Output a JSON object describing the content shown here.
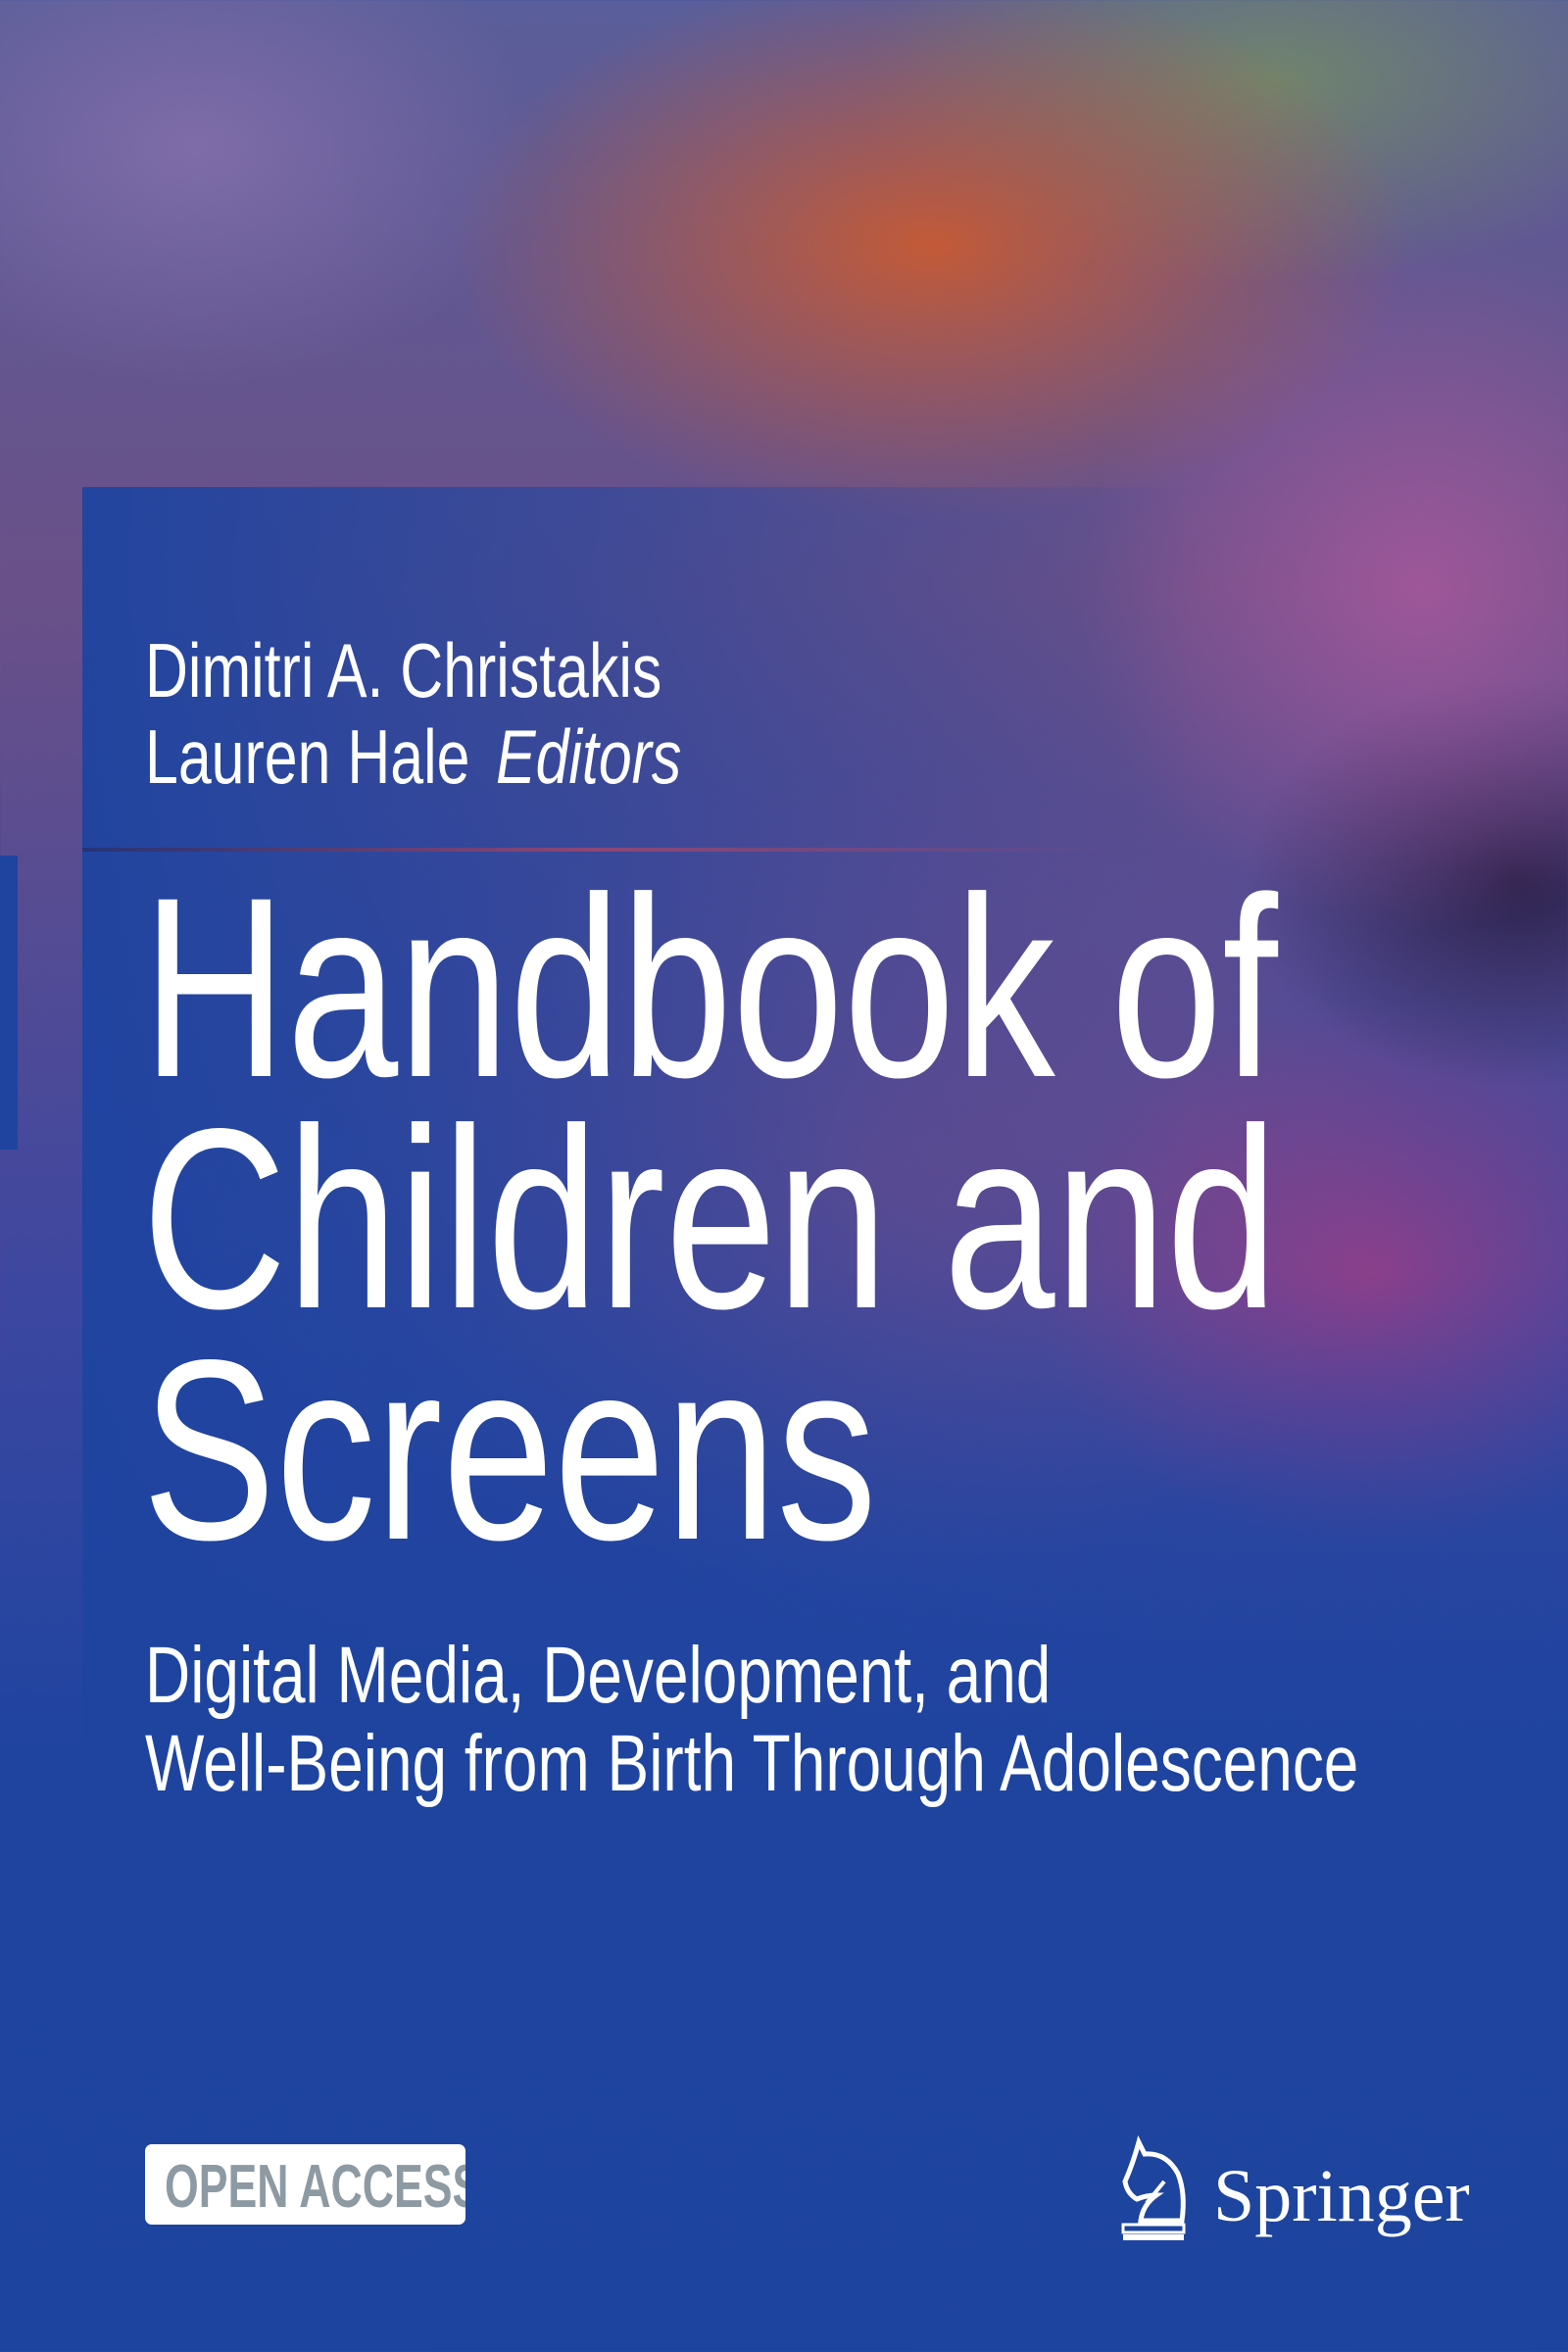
{
  "cover": {
    "editors": [
      "Dimitri A. Christakis",
      "Lauren Hale"
    ],
    "editors_label": "Editors",
    "title_lines": [
      "Handbook of",
      "Children and",
      "Screens"
    ],
    "subtitle_lines": [
      "Digital Media, Development, and",
      "Well-Being from Birth Through Adolescence"
    ],
    "badge": "OPEN ACCESS",
    "publisher": "Springer",
    "publisher_icon": "knight-chess-piece-icon",
    "colors": {
      "background": "#1d449e",
      "badge_text": "#8e9aa3",
      "text": "#ffffff"
    }
  }
}
